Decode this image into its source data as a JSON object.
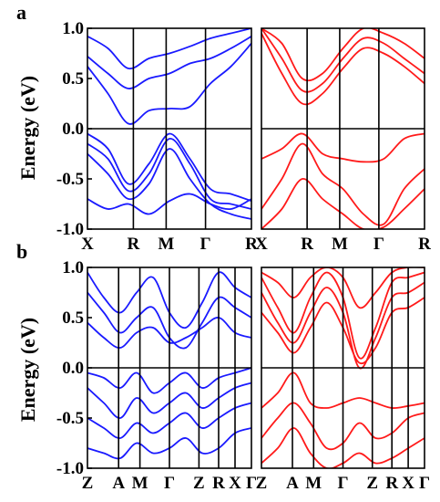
{
  "figure": {
    "colors": {
      "left": "#1a1aff",
      "right": "#ff1a1a",
      "axes": "#000000"
    },
    "panels": [
      {
        "letter": "a",
        "ylabel": "Energy (eV)",
        "yticks": [
          "1.0",
          "0.5",
          "0.0",
          "-0.5",
          "-1.0"
        ],
        "ylim": [
          -1.0,
          1.0
        ],
        "subplots": [
          {
            "color": "left",
            "xticks": [
              {
                "label": "X",
                "pos": 0
              },
              {
                "label": "R",
                "pos": 0.28
              },
              {
                "label": "M",
                "pos": 0.48
              },
              {
                "label": "Γ",
                "pos": 0.72
              },
              {
                "label": "R",
                "pos": 1
              }
            ]
          },
          {
            "color": "right",
            "xticks": [
              {
                "label": "X",
                "pos": 0
              },
              {
                "label": "R",
                "pos": 0.28
              },
              {
                "label": "M",
                "pos": 0.48
              },
              {
                "label": "Γ",
                "pos": 0.72
              },
              {
                "label": "R",
                "pos": 1
              }
            ]
          }
        ]
      },
      {
        "letter": "b",
        "ylabel": "Energy (eV)",
        "yticks": [
          "1.0",
          "0.5",
          "0.0",
          "-0.5",
          "-1.0"
        ],
        "ylim": [
          -1.0,
          1.0
        ],
        "subplots": [
          {
            "color": "left",
            "xticks": [
              {
                "label": "Z",
                "pos": 0
              },
              {
                "label": "A",
                "pos": 0.19
              },
              {
                "label": "M",
                "pos": 0.32
              },
              {
                "label": "Γ",
                "pos": 0.5
              },
              {
                "label": "Z",
                "pos": 0.68
              },
              {
                "label": "R",
                "pos": 0.8
              },
              {
                "label": "X",
                "pos": 0.9
              },
              {
                "label": "Γ",
                "pos": 1
              }
            ]
          },
          {
            "color": "right",
            "xticks": [
              {
                "label": "Z",
                "pos": 0
              },
              {
                "label": "A",
                "pos": 0.19
              },
              {
                "label": "M",
                "pos": 0.32
              },
              {
                "label": "Γ",
                "pos": 0.5
              },
              {
                "label": "Z",
                "pos": 0.68
              },
              {
                "label": "R",
                "pos": 0.8
              },
              {
                "label": "X",
                "pos": 0.9
              },
              {
                "label": "Γ",
                "pos": 1
              }
            ]
          }
        ]
      }
    ]
  },
  "chart_data": [
    {
      "type": "line",
      "title": "",
      "xlabel": "",
      "ylabel": "Energy (eV)",
      "ylim": [
        -1.0,
        1.0
      ],
      "x_ticks": [
        "X",
        "R",
        "M",
        "Γ",
        "R"
      ],
      "y_ticks": [
        1.0,
        0.5,
        0.0,
        -0.5,
        -1.0
      ],
      "grid": false,
      "series": [
        {
          "values": [
            0.62,
            0.35,
            0.05,
            0.18,
            0.2,
            0.22,
            0.45,
            0.62,
            0.85
          ]
        },
        {
          "values": [
            0.72,
            0.55,
            0.4,
            0.5,
            0.55,
            0.65,
            0.7,
            0.8,
            0.92
          ]
        },
        {
          "values": [
            0.92,
            0.8,
            0.6,
            0.7,
            0.75,
            0.82,
            0.9,
            0.95,
            1.0
          ]
        },
        {
          "values": [
            -0.05,
            -0.2,
            -0.55,
            -0.35,
            -0.05,
            -0.3,
            -0.6,
            -0.65,
            -0.72
          ]
        },
        {
          "values": [
            -0.15,
            -0.3,
            -0.62,
            -0.45,
            -0.1,
            -0.35,
            -0.7,
            -0.75,
            -0.8
          ]
        },
        {
          "values": [
            -0.25,
            -0.45,
            -0.7,
            -0.55,
            -0.2,
            -0.5,
            -0.75,
            -0.85,
            -0.9
          ]
        },
        {
          "values": [
            -0.7,
            -0.8,
            -0.75,
            -0.85,
            -0.72,
            -0.65,
            -0.75,
            -0.8,
            -0.7
          ]
        }
      ]
    },
    {
      "type": "line",
      "title": "",
      "xlabel": "",
      "ylabel": "Energy (eV)",
      "ylim": [
        -1.0,
        1.0
      ],
      "x_ticks": [
        "X",
        "R",
        "M",
        "Γ",
        "R"
      ],
      "y_ticks": [
        1.0,
        0.5,
        0.0,
        -0.5,
        -1.0
      ],
      "grid": false,
      "series": [
        {
          "values": [
            0.95,
            0.55,
            0.25,
            0.35,
            0.6,
            0.8,
            0.75,
            0.62,
            0.45
          ]
        },
        {
          "values": [
            1.0,
            0.7,
            0.38,
            0.45,
            0.7,
            0.9,
            0.85,
            0.7,
            0.55
          ]
        },
        {
          "values": [
            1.0,
            0.85,
            0.5,
            0.55,
            0.8,
            1.0,
            0.95,
            0.85,
            0.7
          ]
        },
        {
          "values": [
            -0.3,
            -0.2,
            -0.05,
            -0.25,
            -0.3,
            -0.33,
            -0.3,
            -0.1,
            -0.05
          ]
        },
        {
          "values": [
            -0.8,
            -0.5,
            -0.15,
            -0.45,
            -0.6,
            -0.85,
            -0.95,
            -0.6,
            -0.4
          ]
        },
        {
          "values": [
            -1.0,
            -0.8,
            -0.5,
            -0.7,
            -0.85,
            -1.0,
            -0.98,
            -0.8,
            -0.6
          ]
        }
      ]
    },
    {
      "type": "line",
      "title": "",
      "xlabel": "",
      "ylabel": "Energy (eV)",
      "ylim": [
        -1.0,
        1.0
      ],
      "x_ticks": [
        "Z",
        "A",
        "M",
        "Γ",
        "Z",
        "R",
        "X",
        "Γ"
      ],
      "y_ticks": [
        1.0,
        0.5,
        0.0,
        -0.5,
        -1.0
      ],
      "grid": false,
      "series": [
        {
          "values": [
            0.95,
            0.7,
            0.55,
            0.75,
            0.9,
            0.55,
            0.4,
            0.65,
            0.95,
            0.8,
            0.7
          ]
        },
        {
          "values": [
            0.75,
            0.55,
            0.35,
            0.5,
            0.6,
            0.3,
            0.2,
            0.45,
            0.7,
            0.6,
            0.5
          ]
        },
        {
          "values": [
            0.45,
            0.3,
            0.2,
            0.35,
            0.4,
            0.25,
            0.3,
            0.4,
            0.5,
            0.35,
            0.3
          ]
        },
        {
          "values": [
            -0.05,
            -0.1,
            -0.2,
            -0.05,
            -0.25,
            -0.15,
            -0.05,
            -0.2,
            -0.1,
            -0.05,
            0.0
          ]
        },
        {
          "values": [
            -0.2,
            -0.35,
            -0.5,
            -0.3,
            -0.45,
            -0.35,
            -0.25,
            -0.4,
            -0.3,
            -0.2,
            -0.15
          ]
        },
        {
          "values": [
            -0.5,
            -0.6,
            -0.7,
            -0.55,
            -0.65,
            -0.55,
            -0.45,
            -0.6,
            -0.5,
            -0.4,
            -0.35
          ]
        },
        {
          "values": [
            -0.8,
            -0.85,
            -0.9,
            -0.75,
            -0.85,
            -0.8,
            -0.7,
            -0.85,
            -0.8,
            -0.65,
            -0.6
          ]
        }
      ]
    },
    {
      "type": "line",
      "title": "",
      "xlabel": "",
      "ylabel": "Energy (eV)",
      "ylim": [
        -1.0,
        1.0
      ],
      "x_ticks": [
        "Z",
        "A",
        "M",
        "Γ",
        "Z",
        "R",
        "X",
        "Γ"
      ],
      "y_ticks": [
        1.0,
        0.5,
        0.0,
        -0.5,
        -1.0
      ],
      "grid": false,
      "series": [
        {
          "values": [
            0.9,
            0.6,
            0.35,
            0.7,
            0.95,
            0.7,
            0.1,
            0.4,
            0.85,
            0.9,
            0.95
          ]
        },
        {
          "values": [
            0.75,
            0.45,
            0.25,
            0.55,
            0.8,
            0.55,
            0.0,
            0.3,
            0.7,
            0.75,
            0.85
          ]
        },
        {
          "values": [
            0.55,
            0.35,
            0.15,
            0.4,
            0.65,
            0.4,
            0.05,
            0.2,
            0.55,
            0.6,
            0.7
          ]
        },
        {
          "values": [
            0.95,
            0.85,
            0.7,
            0.9,
            1.0,
            0.9,
            0.6,
            0.75,
            0.95,
            1.0,
            1.0
          ]
        },
        {
          "values": [
            -0.4,
            -0.25,
            -0.05,
            -0.35,
            -0.4,
            -0.35,
            -0.3,
            -0.35,
            -0.4,
            -0.38,
            -0.35
          ]
        },
        {
          "values": [
            -0.7,
            -0.5,
            -0.35,
            -0.55,
            -0.8,
            -0.75,
            -0.55,
            -0.7,
            -0.65,
            -0.5,
            -0.45
          ]
        },
        {
          "values": [
            -0.95,
            -0.8,
            -0.6,
            -0.85,
            -1.0,
            -0.95,
            -0.85,
            -0.95,
            -0.9,
            -0.8,
            -0.7
          ]
        }
      ]
    }
  ]
}
